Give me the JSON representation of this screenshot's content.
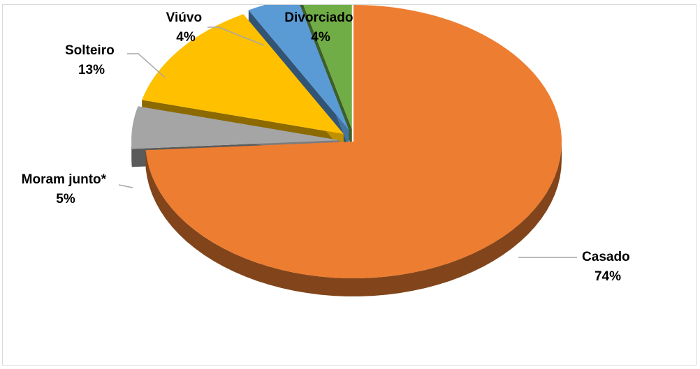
{
  "chart_data": {
    "type": "pie",
    "style": "3d-exploded",
    "title": "",
    "legend": "none",
    "slices": [
      {
        "name": "Casado",
        "value": 74,
        "label": "74%",
        "color": "#ed7d31"
      },
      {
        "name": "Moram junto*",
        "value": 5,
        "label": "5%",
        "color": "#a5a5a5"
      },
      {
        "name": "Solteiro",
        "value": 13,
        "label": "13%",
        "color": "#ffc000"
      },
      {
        "name": "Viúvo",
        "value": 4,
        "label": "4%",
        "color": "#5b9bd5"
      },
      {
        "name": "Divorciado",
        "value": 4,
        "label": "4%",
        "color": "#70ad47"
      }
    ]
  }
}
